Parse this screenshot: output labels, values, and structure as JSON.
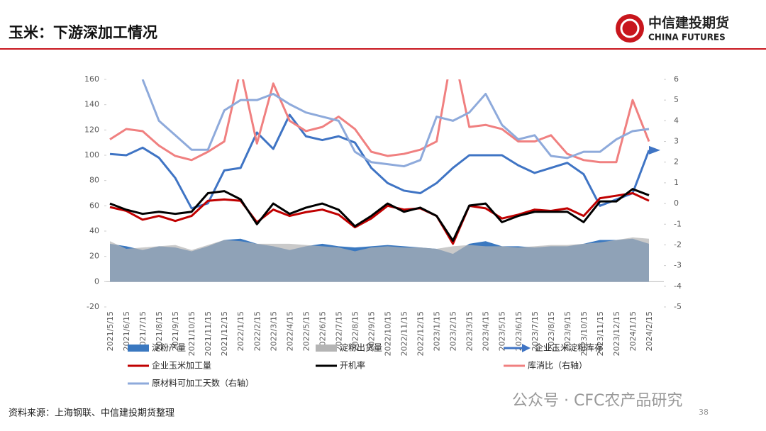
{
  "header": {
    "title": "玉米：下游深加工情况",
    "logo_cn": "中信建投期货",
    "logo_en": "CHINA FUTURES"
  },
  "chart_data": {
    "type": "line",
    "categories": [
      "2021/5/15",
      "2021/6/15",
      "2021/7/15",
      "2021/8/15",
      "2021/9/15",
      "2021/10/15",
      "2021/11/15",
      "2021/12/15",
      "2022/1/15",
      "2022/2/15",
      "2022/3/15",
      "2022/4/15",
      "2022/5/15",
      "2022/6/15",
      "2022/7/15",
      "2022/8/15",
      "2022/9/15",
      "2022/10/15",
      "2022/11/15",
      "2022/12/15",
      "2023/1/15",
      "2023/2/15",
      "2023/3/15",
      "2023/4/15",
      "2023/5/15",
      "2023/6/15",
      "2023/7/15",
      "2023/8/15",
      "2023/9/15",
      "2023/10/15",
      "2023/11/15",
      "2023/12/15",
      "2024/1/15",
      "2024/2/15"
    ],
    "ylim": [
      -20,
      160
    ],
    "yticks": [
      -20,
      0,
      20,
      40,
      60,
      80,
      100,
      120,
      140,
      160
    ],
    "y2lim": [
      -5,
      6
    ],
    "y2ticks": [
      -5,
      -4,
      -3,
      -2,
      -1,
      0,
      1,
      2,
      3,
      4,
      5,
      6
    ],
    "series": [
      {
        "name": "淀粉产量",
        "type": "area",
        "color": "#3a78c0",
        "values": [
          30,
          28,
          25,
          28,
          27,
          24,
          28,
          33,
          34,
          30,
          28,
          25,
          28,
          30,
          28,
          27,
          28,
          29,
          28,
          27,
          26,
          22,
          30,
          32,
          28,
          28,
          27,
          28,
          28,
          30,
          33,
          33,
          34,
          30
        ]
      },
      {
        "name": "淀粉出货量",
        "type": "area",
        "color": "#b4b4b4",
        "values": [
          32,
          26,
          27,
          28,
          29,
          25,
          29,
          33,
          32,
          30,
          30,
          30,
          29,
          28,
          27,
          24,
          27,
          28,
          27,
          27,
          26,
          28,
          29,
          28,
          28,
          27,
          28,
          29,
          29,
          30,
          31,
          33,
          35,
          34
        ]
      },
      {
        "name": "企业玉米淀粉库存",
        "type": "line",
        "marker": "arrow",
        "color": "#3f74c4",
        "values": [
          101,
          100,
          106,
          98,
          82,
          58,
          62,
          88,
          90,
          118,
          105,
          132,
          115,
          112,
          115,
          110,
          90,
          78,
          72,
          70,
          78,
          90,
          100,
          100,
          100,
          92,
          86,
          90,
          94,
          85,
          60,
          65,
          70,
          104
        ]
      },
      {
        "name": "企业玉米加工量",
        "type": "line",
        "color": "#c00000",
        "values": [
          59,
          56,
          49,
          52,
          48,
          52,
          64,
          65,
          64,
          47,
          57,
          52,
          55,
          57,
          53,
          43,
          50,
          60,
          57,
          58,
          52,
          30,
          60,
          58,
          50,
          53,
          57,
          56,
          58,
          52,
          66,
          68,
          70,
          64
        ]
      },
      {
        "name": "开机率",
        "type": "line",
        "axis": "y2",
        "color": "#000000",
        "values": [
          0.0,
          -0.3,
          -0.5,
          -0.4,
          -0.5,
          -0.4,
          0.5,
          0.6,
          0.2,
          -1.0,
          0.0,
          -0.5,
          -0.2,
          0.0,
          -0.3,
          -1.1,
          -0.6,
          0.0,
          -0.4,
          -0.2,
          -0.6,
          -1.8,
          -0.1,
          0.0,
          -0.9,
          -0.6,
          -0.4,
          -0.4,
          -0.4,
          -0.9,
          0.1,
          0.1,
          0.7,
          0.4
        ]
      },
      {
        "name": "库消比（右轴）",
        "type": "line",
        "axis": "y2",
        "color": "#f08080",
        "values": [
          3.1,
          3.6,
          3.5,
          2.8,
          2.3,
          2.1,
          2.5,
          3.0,
          6.5,
          2.9,
          5.8,
          4.0,
          3.5,
          3.7,
          4.2,
          3.6,
          2.5,
          2.3,
          2.4,
          2.6,
          3.0,
          7.5,
          3.7,
          3.8,
          3.6,
          3.0,
          3.0,
          3.3,
          2.4,
          2.1,
          2.0,
          2.0,
          5.0,
          3.0
        ]
      },
      {
        "name": "原材料可加工天数（右轴）",
        "type": "line",
        "axis": "y2",
        "color": "#8eaadb",
        "values": [
          null,
          null,
          6.0,
          4.0,
          3.3,
          2.6,
          2.6,
          4.5,
          5.0,
          5.0,
          5.3,
          4.8,
          4.4,
          4.2,
          4.0,
          2.5,
          2.0,
          1.9,
          1.8,
          2.1,
          4.2,
          4.0,
          4.4,
          5.3,
          3.8,
          3.1,
          3.3,
          2.3,
          2.2,
          2.5,
          2.5,
          3.1,
          3.5,
          3.6
        ]
      }
    ]
  },
  "footer": {
    "source": "资料来源：上海钢联、中信建投期货整理",
    "watermark": "公众号 · CFC农产品研究",
    "page": "38"
  }
}
